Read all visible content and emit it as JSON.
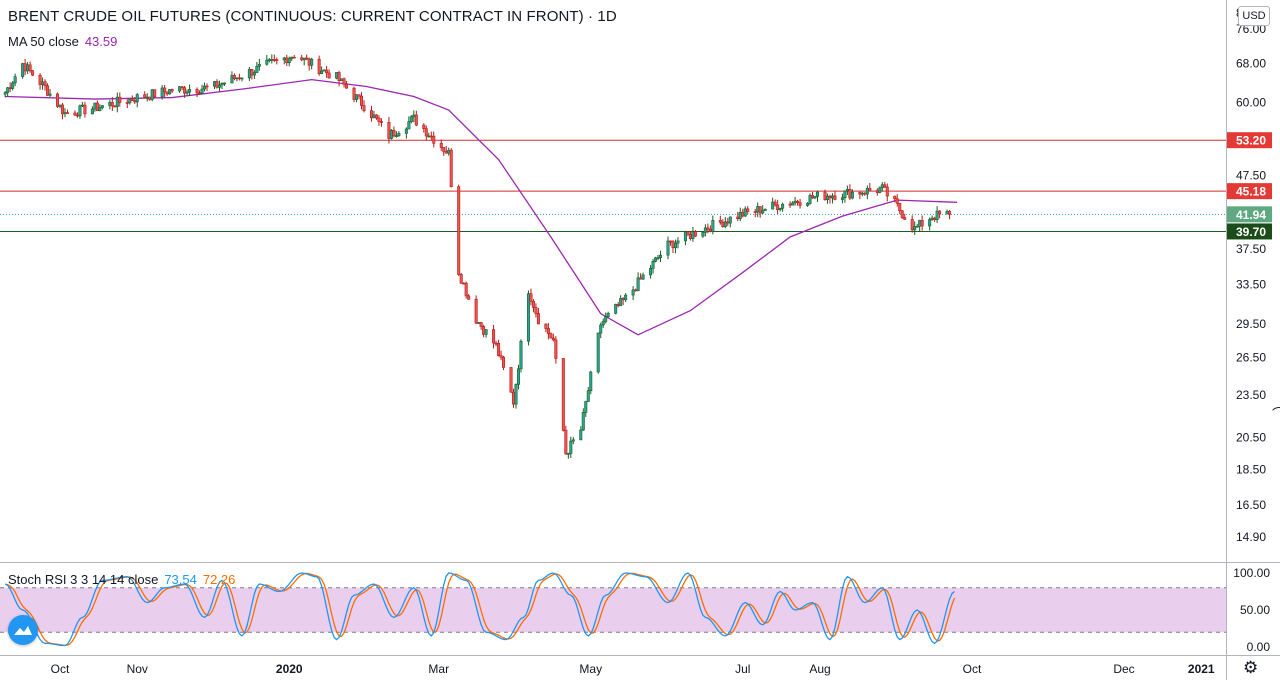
{
  "header": {
    "title": "BRENT CRUDE OIL FUTURES (CONTINUOUS: CURRENT CONTRACT IN FRONT) · 1D",
    "ma_label": "MA 50 close",
    "ma_value": "43.59",
    "currency_button": "USD"
  },
  "indicator": {
    "label": "Stoch RSI 3 3 14 14 close",
    "k_value": "73.54",
    "d_value": "72.26",
    "axis_labels": [
      "100.00",
      "50.00",
      "0.00"
    ],
    "k_color": "#2196f3",
    "d_color": "#ff6d00",
    "band_color": "#e1bee7"
  },
  "colors": {
    "up": "#26a69a",
    "down": "#ef5350",
    "up_dark": "#1b5e20",
    "down_dark": "#b71c1c",
    "ma": "#9c27b0",
    "resistance": "#d32f2f",
    "support": "#1b5e20"
  },
  "icons": {
    "settings": "gear-icon",
    "logo": "tradingview-logo-icon",
    "scroll": "drag-handle-icon"
  },
  "chart_data": {
    "type": "candlestick",
    "title": "BRENT CRUDE OIL FUTURES (CONTINUOUS: CURRENT CONTRACT IN FRONT) · 1D",
    "price_axis_scale": "log",
    "price_ticks": [
      "80.00",
      "76.00",
      "68.00",
      "60.00",
      "53.20",
      "47.50",
      "45.18",
      "41.94",
      "39.70",
      "37.50",
      "33.50",
      "29.50",
      "26.50",
      "23.50",
      "20.50",
      "18.50",
      "16.50",
      "14.90"
    ],
    "price_tick_values": [
      80,
      76,
      68,
      60,
      47.5,
      37.5,
      33.5,
      29.5,
      26.5,
      23.5,
      20.5,
      18.5,
      16.5,
      14.9
    ],
    "time_labels": [
      "Oct",
      "Nov",
      "2020",
      "Mar",
      "May",
      "Jul",
      "Aug",
      "Oct",
      "Dec",
      "2021"
    ],
    "time_label_dates": [
      "2019-10-01",
      "2019-11-01",
      "2020-01-01",
      "2020-03-01",
      "2020-05-01",
      "2020-07-01",
      "2020-08-01",
      "2020-10-01",
      "2020-12-01",
      "2021-01-01"
    ],
    "ohlc_anchor_dates": [
      "2019-09-09",
      "2019-09-16",
      "2019-09-25",
      "2019-10-03",
      "2019-10-15",
      "2019-11-01",
      "2019-11-15",
      "2019-12-01",
      "2019-12-15",
      "2020-01-03",
      "2020-01-08",
      "2020-01-20",
      "2020-02-01",
      "2020-02-10",
      "2020-02-20",
      "2020-03-05",
      "2020-03-09",
      "2020-03-16",
      "2020-03-24",
      "2020-03-31",
      "2020-04-06",
      "2020-04-10",
      "2020-04-16",
      "2020-04-21",
      "2020-04-27",
      "2020-05-05",
      "2020-05-15",
      "2020-06-01",
      "2020-06-15",
      "2020-07-01",
      "2020-07-15",
      "2020-08-01",
      "2020-08-15",
      "2020-08-26",
      "2020-09-01",
      "2020-09-08",
      "2020-09-15",
      "2020-09-22"
    ],
    "ohlc_anchor_closes": [
      62,
      68,
      63,
      58,
      59,
      61,
      62.5,
      63,
      66,
      70,
      68.5,
      65,
      59,
      54,
      57,
      51,
      35,
      30,
      27.5,
      23,
      33,
      30,
      28,
      19.5,
      21,
      29.5,
      32,
      38,
      40,
      42,
      43.2,
      44.5,
      45,
      45.5,
      43,
      40,
      41.7,
      41.94
    ],
    "moving_average": {
      "name": "MA 50 close",
      "last": 43.59,
      "dates": [
        "2019-09-09",
        "2019-10-15",
        "2019-11-15",
        "2019-12-15",
        "2020-01-10",
        "2020-02-01",
        "2020-02-20",
        "2020-03-05",
        "2020-03-25",
        "2020-04-15",
        "2020-04-25",
        "2020-05-05",
        "2020-05-20",
        "2020-06-10",
        "2020-06-30",
        "2020-07-20",
        "2020-08-10",
        "2020-09-01",
        "2020-09-25"
      ],
      "values": [
        61.2,
        60.7,
        61,
        62.8,
        64.6,
        63.2,
        61.2,
        58.6,
        50,
        39,
        34.5,
        30.5,
        28.5,
        30.8,
        34.6,
        39,
        41.7,
        43.9,
        43.59
      ]
    },
    "horizontal_lines": [
      {
        "value": 53.2,
        "label": "53.20",
        "role": "resistance"
      },
      {
        "value": 45.18,
        "label": "45.18",
        "role": "resistance"
      },
      {
        "value": 39.7,
        "label": "39.70",
        "role": "support"
      }
    ],
    "last_price": {
      "value": 41.94,
      "label": "41.94"
    },
    "stoch_rsi": {
      "params": "3 3 14 14 close",
      "k_last": 73.54,
      "d_last": 72.26,
      "upper_band": 80,
      "lower_band": 20,
      "range": [
        0,
        100
      ],
      "k_anchor_dates": [
        "2019-09-09",
        "2019-09-16",
        "2019-09-25",
        "2019-10-03",
        "2019-10-10",
        "2019-10-18",
        "2019-10-28",
        "2019-11-05",
        "2019-11-12",
        "2019-11-20",
        "2019-11-28",
        "2019-12-05",
        "2019-12-13",
        "2019-12-20",
        "2019-12-28",
        "2020-01-06",
        "2020-01-12",
        "2020-01-20",
        "2020-01-27",
        "2020-02-04",
        "2020-02-12",
        "2020-02-20",
        "2020-02-27",
        "2020-03-05",
        "2020-03-12",
        "2020-03-20",
        "2020-03-28",
        "2020-04-04",
        "2020-04-10",
        "2020-04-16",
        "2020-04-23",
        "2020-04-30",
        "2020-05-07",
        "2020-05-15",
        "2020-05-23",
        "2020-06-01",
        "2020-06-09",
        "2020-06-16",
        "2020-06-24",
        "2020-07-02",
        "2020-07-09",
        "2020-07-16",
        "2020-07-22",
        "2020-07-29",
        "2020-08-05",
        "2020-08-12",
        "2020-08-19",
        "2020-08-26",
        "2020-09-02",
        "2020-09-09",
        "2020-09-16",
        "2020-09-24"
      ],
      "k_anchor_values": [
        85,
        50,
        5,
        2,
        40,
        90,
        95,
        60,
        80,
        85,
        40,
        90,
        15,
        85,
        75,
        100,
        95,
        10,
        70,
        85,
        40,
        80,
        15,
        100,
        90,
        20,
        10,
        40,
        90,
        100,
        70,
        15,
        70,
        100,
        95,
        60,
        100,
        40,
        15,
        60,
        30,
        75,
        50,
        60,
        10,
        95,
        60,
        80,
        10,
        50,
        5,
        75
      ]
    }
  }
}
